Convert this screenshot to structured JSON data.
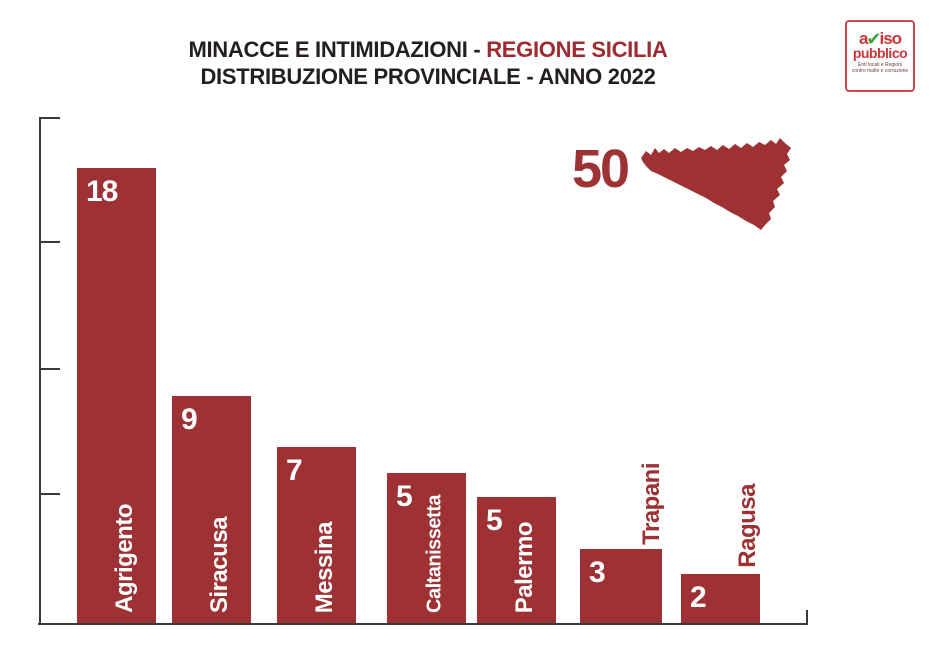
{
  "title": {
    "line1_black": "MINACCE E INTIMIDAZIONI -",
    "line1_red": "REGIONE SICILIA",
    "line2": "DISTRIBUZIONE PROVINCIALE - ANNO 2022"
  },
  "logo": {
    "line1_prefix": "a",
    "check": "✔",
    "line1_suffix": "iso",
    "line2": "pubblico",
    "tagline1": "Enti locali e Regioni",
    "tagline2": "contro mafie e corruzione"
  },
  "total": {
    "value": "50"
  },
  "chart_data": {
    "type": "bar",
    "title": "MINACCE E INTIMIDAZIONI - REGIONE SICILIA",
    "subtitle": "DISTRIBUZIONE PROVINCIALE - ANNO 2022",
    "categories": [
      "Agrigento",
      "Siracusa",
      "Messina",
      "Caltanissetta",
      "Palermo",
      "Trapani",
      "Ragusa"
    ],
    "values": [
      18,
      9,
      7,
      5,
      5,
      3,
      2
    ],
    "total": 50,
    "xlabel": "",
    "ylabel": "",
    "ylim": [
      0,
      20
    ],
    "y_ticks": [
      5,
      10,
      15,
      20
    ],
    "y_tick_labels_visible": false,
    "grid": false,
    "legend": false,
    "bar_color": "#9D3134",
    "value_label_color": "#FFFFFF",
    "category_label_placement": [
      "inside",
      "inside",
      "inside",
      "inside",
      "inside",
      "above",
      "above"
    ]
  },
  "colors": {
    "bar_red": "#9D3134",
    "title_red": "#9E2B31",
    "title_black": "#231F20",
    "axis": "#3A3A3A",
    "logo_red": "#C9353B",
    "logo_green": "#3DA43C",
    "logo_tagline": "#6E3B3B"
  }
}
